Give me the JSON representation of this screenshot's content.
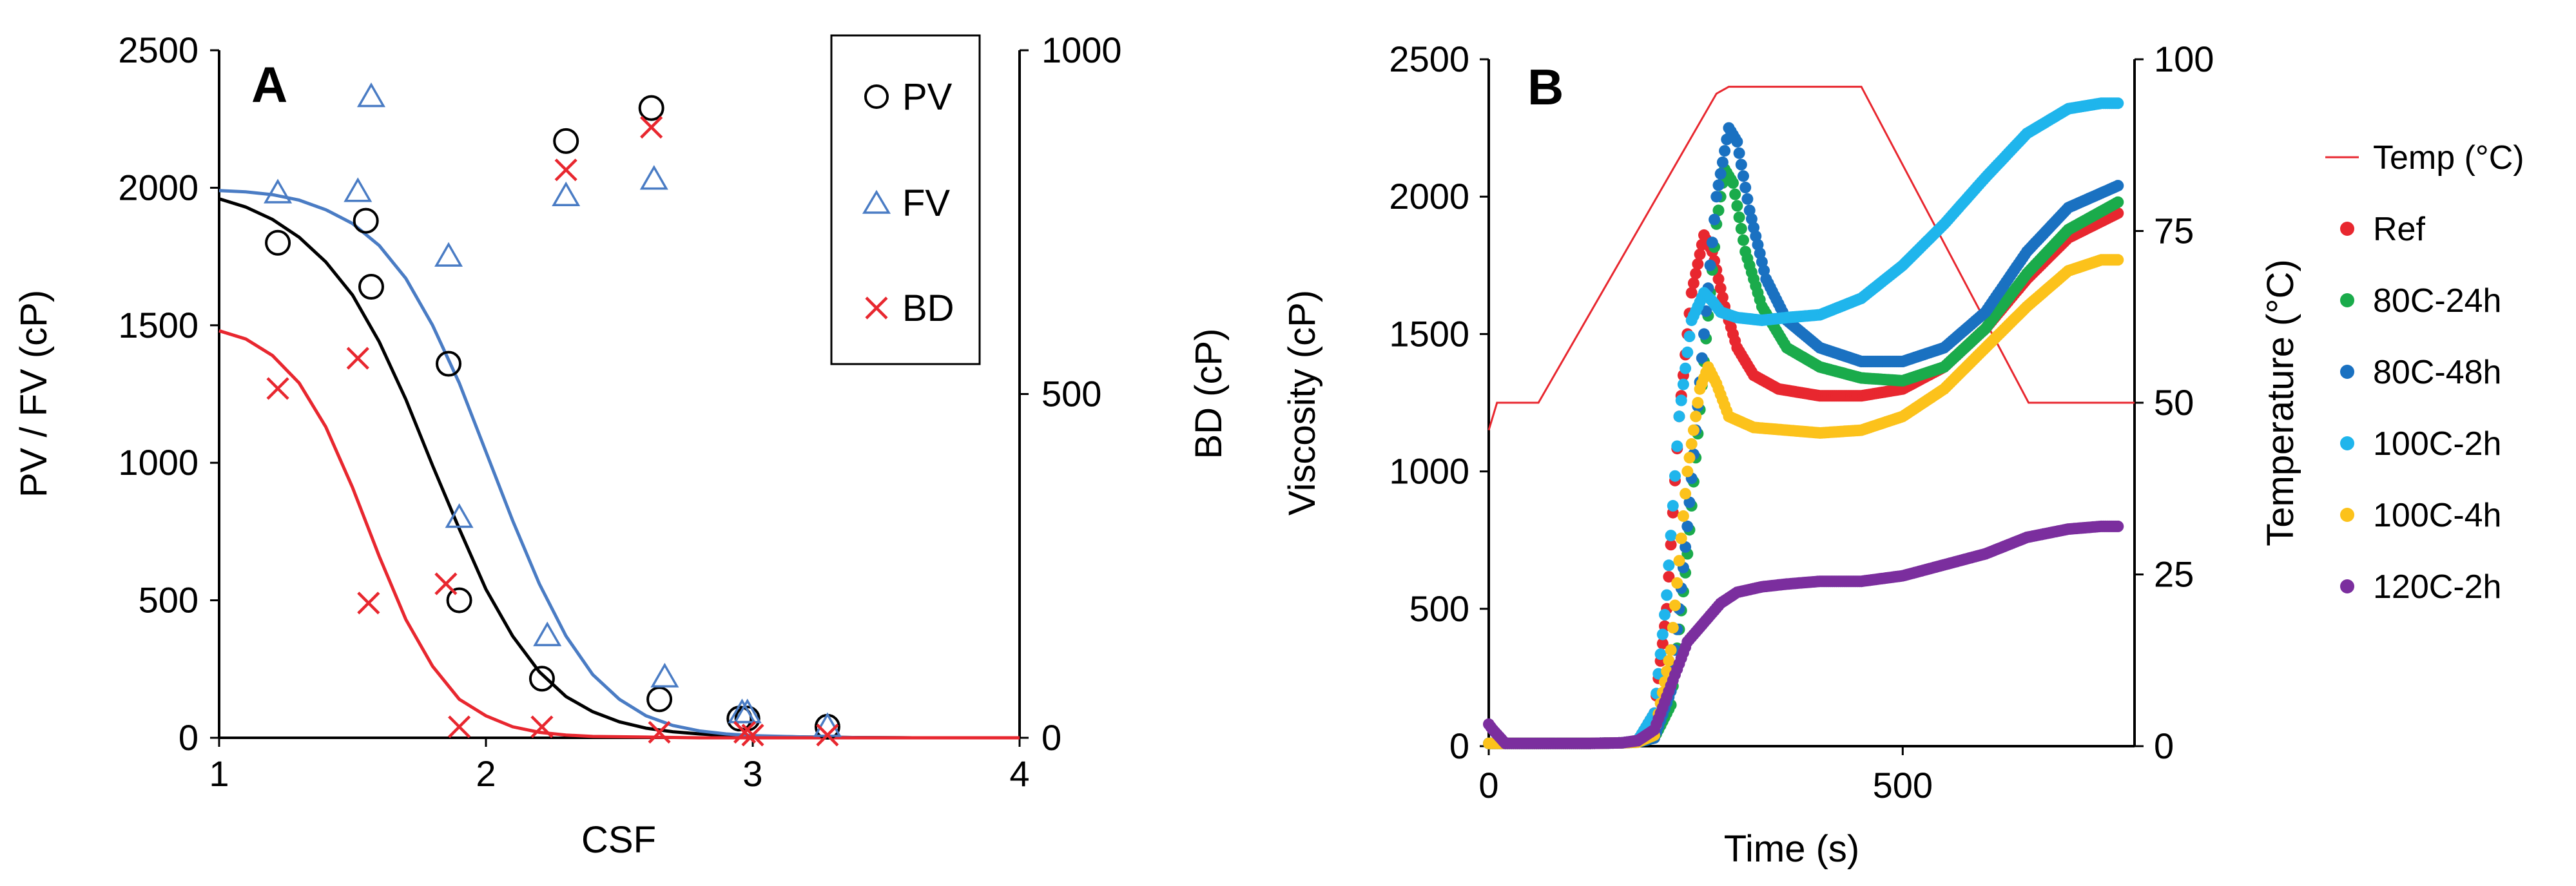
{
  "chart_data": [
    {
      "type": "scatter",
      "panel_label": "A",
      "xlabel": "CSF",
      "ylabel": "PV / FV (cP)",
      "y2label": "BD (cP)",
      "xlim": [
        1,
        4
      ],
      "ylim": [
        0,
        2500
      ],
      "y2lim": [
        0,
        1000
      ],
      "xticks": [
        1,
        2,
        3,
        4
      ],
      "yticks": [
        0,
        500,
        1000,
        1500,
        2000,
        2500
      ],
      "y2ticks": [
        0,
        500,
        1000
      ],
      "grid": false,
      "legend_position": "top-right",
      "series": [
        {
          "name": "PV",
          "marker": "circle",
          "color": "#000000",
          "axis": "left",
          "points": [
            [
              1.22,
              1800
            ],
            [
              1.55,
              1880
            ],
            [
              1.57,
              1640
            ],
            [
              1.86,
              1360
            ],
            [
              1.9,
              500
            ],
            [
              2.21,
              215
            ],
            [
              2.3,
              2170
            ],
            [
              2.62,
              2290
            ],
            [
              2.65,
              140
            ],
            [
              2.95,
              70
            ],
            [
              2.98,
              70
            ],
            [
              3.28,
              40
            ]
          ]
        },
        {
          "name": "FV",
          "marker": "triangle",
          "color": "#4a7cc4",
          "axis": "left",
          "points": [
            [
              1.22,
              1980
            ],
            [
              1.52,
              1985
            ],
            [
              1.57,
              2330
            ],
            [
              1.86,
              1750
            ],
            [
              1.9,
              800
            ],
            [
              2.23,
              370
            ],
            [
              2.3,
              1970
            ],
            [
              2.63,
              2030
            ],
            [
              2.67,
              220
            ],
            [
              2.96,
              90
            ],
            [
              2.98,
              90
            ],
            [
              3.28,
              40
            ]
          ]
        },
        {
          "name": "BD",
          "marker": "x",
          "color": "#e8272f",
          "axis": "right",
          "points": [
            [
              1.22,
              508
            ],
            [
              1.52,
              552
            ],
            [
              1.56,
              196
            ],
            [
              1.85,
              224
            ],
            [
              1.9,
              16
            ],
            [
              2.21,
              16
            ],
            [
              2.3,
              826
            ],
            [
              2.62,
              888
            ],
            [
              2.65,
              8
            ],
            [
              2.97,
              8
            ],
            [
              3.0,
              4
            ],
            [
              3.28,
              4
            ]
          ]
        }
      ],
      "fits": [
        {
          "name": "PV fit",
          "color": "#000000",
          "axis": "left",
          "x": [
            1.0,
            1.1,
            1.2,
            1.3,
            1.4,
            1.5,
            1.6,
            1.7,
            1.8,
            1.9,
            2.0,
            2.1,
            2.2,
            2.3,
            2.4,
            2.5,
            2.6,
            2.7,
            2.8,
            2.9,
            3.0,
            3.2,
            3.4,
            3.6,
            3.8,
            4.0
          ],
          "y": [
            1960,
            1930,
            1885,
            1820,
            1730,
            1610,
            1440,
            1230,
            990,
            760,
            540,
            370,
            240,
            150,
            95,
            58,
            35,
            22,
            14,
            9,
            6,
            3,
            1,
            0,
            0,
            0
          ]
        },
        {
          "name": "FV fit",
          "color": "#4a7cc4",
          "axis": "left",
          "x": [
            1.0,
            1.1,
            1.2,
            1.3,
            1.4,
            1.5,
            1.6,
            1.7,
            1.8,
            1.9,
            2.0,
            2.1,
            2.2,
            2.3,
            2.4,
            2.5,
            2.6,
            2.7,
            2.8,
            2.9,
            3.0,
            3.2,
            3.4,
            3.6,
            3.8,
            4.0
          ],
          "y": [
            1990,
            1985,
            1975,
            1955,
            1920,
            1870,
            1790,
            1670,
            1500,
            1290,
            1040,
            790,
            560,
            370,
            230,
            140,
            80,
            45,
            25,
            14,
            8,
            3,
            1,
            0,
            0,
            0
          ]
        },
        {
          "name": "BD fit",
          "color": "#e8272f",
          "axis": "right",
          "x": [
            1.0,
            1.1,
            1.2,
            1.3,
            1.4,
            1.5,
            1.6,
            1.7,
            1.8,
            1.9,
            2.0,
            2.1,
            2.2,
            2.3,
            2.4,
            2.6,
            2.8,
            3.0,
            3.4,
            3.8,
            4.0
          ],
          "y": [
            592,
            580,
            556,
            516,
            452,
            364,
            264,
            172,
            104,
            56,
            32,
            16,
            8,
            4,
            2,
            1,
            0,
            0,
            0,
            0,
            0
          ]
        }
      ]
    },
    {
      "type": "line",
      "panel_label": "B",
      "xlabel": "Time (s)",
      "ylabel": "Viscosity (cP)",
      "y2label": "Temperature (°C)",
      "xlim": [
        0,
        780
      ],
      "ylim": [
        0,
        2500
      ],
      "y2lim": [
        0,
        100
      ],
      "xticks": [
        0,
        500
      ],
      "yticks": [
        0,
        500,
        1000,
        1500,
        2000,
        2500
      ],
      "y2ticks": [
        0,
        25,
        50,
        75,
        100
      ],
      "grid": false,
      "legend_position": "right",
      "temperature": {
        "name": "Temp (°C)",
        "color": "#e8272f",
        "axis": "right",
        "x": [
          0,
          10,
          60,
          275,
          290,
          450,
          652,
          780
        ],
        "y": [
          46,
          50,
          50,
          95,
          96,
          96,
          50,
          50
        ]
      },
      "series": [
        {
          "name": "Ref",
          "color": "#e8272f",
          "x": [
            0,
            40,
            80,
            120,
            160,
            180,
            200,
            215,
            230,
            245,
            260,
            270,
            285,
            300,
            320,
            350,
            400,
            450,
            500,
            550,
            600,
            650,
            700,
            760
          ],
          "y": [
            10,
            10,
            10,
            10,
            12,
            20,
            120,
            500,
            1200,
            1650,
            1860,
            1800,
            1600,
            1450,
            1350,
            1300,
            1275,
            1275,
            1300,
            1380,
            1520,
            1700,
            1850,
            1940
          ]
        },
        {
          "name": "80C-24h",
          "color": "#1aab4b",
          "x": [
            0,
            40,
            80,
            120,
            160,
            180,
            200,
            220,
            240,
            260,
            275,
            285,
            295,
            310,
            330,
            360,
            400,
            450,
            500,
            550,
            600,
            650,
            700,
            760
          ],
          "y": [
            10,
            10,
            10,
            10,
            12,
            15,
            30,
            150,
            700,
            1400,
            1900,
            2100,
            2050,
            1800,
            1600,
            1450,
            1380,
            1340,
            1330,
            1380,
            1520,
            1720,
            1880,
            1980
          ]
        },
        {
          "name": "80C-48h",
          "color": "#1a71c1",
          "x": [
            0,
            40,
            80,
            120,
            160,
            180,
            200,
            220,
            240,
            260,
            275,
            290,
            300,
            315,
            335,
            360,
            400,
            450,
            500,
            550,
            600,
            650,
            700,
            760
          ],
          "y": [
            10,
            10,
            10,
            10,
            12,
            15,
            30,
            200,
            800,
            1500,
            2000,
            2250,
            2200,
            1950,
            1700,
            1550,
            1450,
            1400,
            1400,
            1450,
            1580,
            1800,
            1960,
            2040
          ]
        },
        {
          "name": "100C-2h",
          "color": "#1fb5ec",
          "x": [
            0,
            40,
            80,
            120,
            160,
            180,
            200,
            215,
            230,
            245,
            260,
            270,
            280,
            300,
            330,
            360,
            400,
            450,
            500,
            550,
            600,
            650,
            700,
            740,
            760
          ],
          "y": [
            10,
            10,
            10,
            10,
            12,
            20,
            120,
            550,
            1200,
            1550,
            1650,
            1620,
            1580,
            1560,
            1550,
            1560,
            1570,
            1630,
            1750,
            1900,
            2070,
            2230,
            2320,
            2340,
            2340
          ]
        },
        {
          "name": "100C-4h",
          "color": "#fcc21b",
          "x": [
            0,
            40,
            80,
            120,
            160,
            180,
            200,
            220,
            240,
            255,
            265,
            275,
            290,
            320,
            360,
            400,
            450,
            500,
            550,
            600,
            650,
            700,
            740,
            760
          ],
          "y": [
            10,
            10,
            10,
            10,
            12,
            15,
            40,
            350,
            1000,
            1300,
            1380,
            1320,
            1200,
            1160,
            1150,
            1140,
            1150,
            1200,
            1300,
            1450,
            1600,
            1730,
            1770,
            1770
          ]
        },
        {
          "name": "120C-2h",
          "color": "#7b2e9e",
          "x": [
            0,
            5,
            20,
            60,
            120,
            160,
            180,
            200,
            220,
            240,
            260,
            280,
            300,
            330,
            360,
            400,
            450,
            500,
            550,
            600,
            650,
            700,
            740,
            760
          ],
          "y": [
            80,
            60,
            10,
            10,
            10,
            12,
            20,
            60,
            220,
            380,
            450,
            520,
            560,
            580,
            590,
            600,
            600,
            620,
            660,
            700,
            760,
            790,
            800,
            800
          ]
        }
      ]
    }
  ]
}
